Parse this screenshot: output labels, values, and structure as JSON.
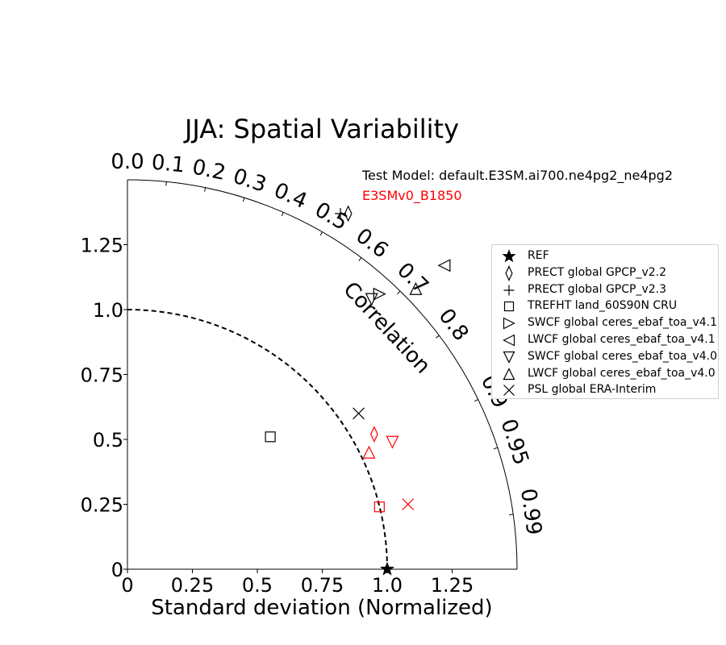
{
  "chart_data": {
    "type": "scatter",
    "subtype": "taylor-diagram",
    "title": "JJA: Spatial Variability",
    "xlabel": "Standard deviation (Normalized)",
    "x_ticks": [
      "0",
      "0.25",
      "0.5",
      "0.75",
      "1.0",
      "1.25"
    ],
    "y_ticks": [
      "0",
      "0.25",
      "0.5",
      "0.75",
      "1.0",
      "1.25"
    ],
    "std_max": 1.5,
    "reference_std": 1.0,
    "correlation_label": "Correlation",
    "correlation_ticks": [
      {
        "value": 0.0,
        "label": "0.0"
      },
      {
        "value": 0.1,
        "label": "0.1"
      },
      {
        "value": 0.2,
        "label": "0.2"
      },
      {
        "value": 0.3,
        "label": "0.3"
      },
      {
        "value": 0.4,
        "label": "0.4"
      },
      {
        "value": 0.5,
        "label": "0.5"
      },
      {
        "value": 0.6,
        "label": "0.6"
      },
      {
        "value": 0.7,
        "label": "0.7"
      },
      {
        "value": 0.8,
        "label": "0.8"
      },
      {
        "value": 0.9,
        "label": "0.9"
      },
      {
        "value": 0.95,
        "label": "0.95"
      },
      {
        "value": 0.99,
        "label": "0.99"
      }
    ],
    "test_model_label": "Test Model: default.E3SM.ai700.ne4pg2_ne4pg2",
    "ref_model_label": "E3SMv0_B1850",
    "colors": {
      "test": "#000000",
      "ref": "#ff0000"
    },
    "legend_position": "right",
    "legend": [
      {
        "label": "REF",
        "marker": "star"
      },
      {
        "label": "PRECT global GPCP_v2.2",
        "marker": "diamond"
      },
      {
        "label": "PRECT global GPCP_v2.3",
        "marker": "plus"
      },
      {
        "label": "TREFHT land_60S90N CRU",
        "marker": "square"
      },
      {
        "label": "SWCF global ceres_ebaf_toa_v4.1",
        "marker": "triangle-right"
      },
      {
        "label": "LWCF global ceres_ebaf_toa_v4.1",
        "marker": "triangle-left"
      },
      {
        "label": "SWCF global ceres_ebaf_toa_v4.0",
        "marker": "triangle-down"
      },
      {
        "label": "LWCF global ceres_ebaf_toa_v4.0",
        "marker": "triangle-up"
      },
      {
        "label": "PSL global ERA-Interim",
        "marker": "x"
      }
    ],
    "points": [
      {
        "series": "REF",
        "marker": "star",
        "color": "test",
        "x": 1.0,
        "y": 0.0
      },
      {
        "series": "PRECT global GPCP_v2.2",
        "marker": "diamond",
        "color": "test",
        "x": 0.85,
        "y": 1.37
      },
      {
        "series": "PRECT global GPCP_v2.3",
        "marker": "plus",
        "color": "test",
        "x": 0.82,
        "y": 1.37
      },
      {
        "series": "TREFHT land_60S90N CRU",
        "marker": "square",
        "color": "test",
        "x": 0.55,
        "y": 0.51
      },
      {
        "series": "SWCF global ceres_ebaf_toa_v4.1",
        "marker": "triangle-right",
        "color": "test",
        "x": 0.97,
        "y": 1.06
      },
      {
        "series": "LWCF global ceres_ebaf_toa_v4.1",
        "marker": "triangle-left",
        "color": "test",
        "x": 1.22,
        "y": 1.17
      },
      {
        "series": "SWCF global ceres_ebaf_toa_v4.0",
        "marker": "triangle-down",
        "color": "test",
        "x": 0.94,
        "y": 1.04
      },
      {
        "series": "LWCF global ceres_ebaf_toa_v4.0",
        "marker": "triangle-up",
        "color": "test",
        "x": 1.11,
        "y": 1.08
      },
      {
        "series": "PSL global ERA-Interim",
        "marker": "x",
        "color": "test",
        "x": 0.89,
        "y": 0.6
      },
      {
        "series": "PRECT global GPCP_v2.2",
        "marker": "diamond",
        "color": "ref",
        "x": 0.95,
        "y": 0.52
      },
      {
        "series": "TREFHT land_60S90N CRU",
        "marker": "square",
        "color": "ref",
        "x": 0.97,
        "y": 0.24
      },
      {
        "series": "SWCF global ceres_ebaf_toa_v4.0",
        "marker": "triangle-down",
        "color": "ref",
        "x": 1.02,
        "y": 0.49
      },
      {
        "series": "LWCF global ceres_ebaf_toa_v4.0",
        "marker": "triangle-up",
        "color": "ref",
        "x": 0.93,
        "y": 0.45
      },
      {
        "series": "PSL global ERA-Interim",
        "marker": "x",
        "color": "ref",
        "x": 1.08,
        "y": 0.25
      }
    ]
  }
}
